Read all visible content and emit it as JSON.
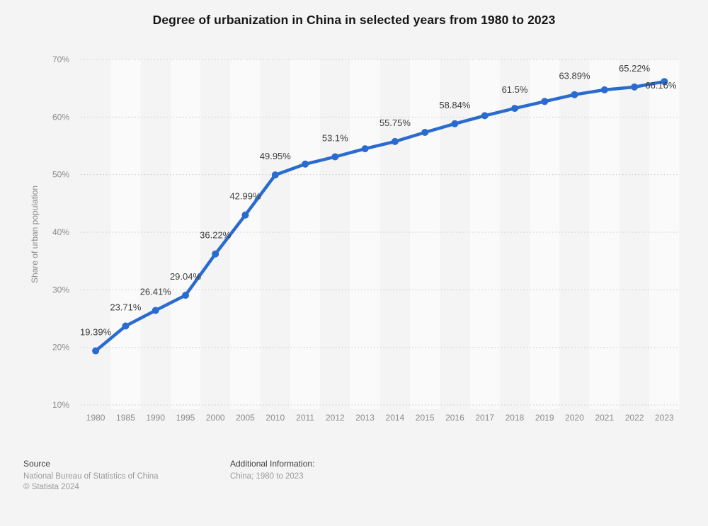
{
  "title": "Degree of urbanization in China in selected years from 1980 to 2023",
  "chart_data": {
    "type": "line",
    "title": "Degree of urbanization in China in selected years from 1980 to 2023",
    "xlabel": "",
    "ylabel": "Share of urban population",
    "categories": [
      "1980",
      "1985",
      "1990",
      "1995",
      "2000",
      "2005",
      "2010",
      "2011",
      "2012",
      "2013",
      "2014",
      "2015",
      "2016",
      "2017",
      "2018",
      "2019",
      "2020",
      "2021",
      "2022",
      "2023"
    ],
    "values": [
      19.39,
      23.71,
      26.41,
      29.04,
      36.22,
      42.99,
      49.95,
      51.83,
      53.1,
      54.49,
      55.75,
      57.33,
      58.84,
      60.24,
      61.5,
      62.71,
      63.89,
      64.72,
      65.22,
      66.16
    ],
    "point_labels": [
      "19.39%",
      "23.71%",
      "26.41%",
      "29.04%",
      "36.22%",
      "42.99%",
      "49.95%",
      null,
      "53.1%",
      null,
      "55.75%",
      null,
      "58.84%",
      null,
      "61.5%",
      null,
      "63.89%",
      null,
      "65.22%",
      "66.16%"
    ],
    "ylim": [
      10,
      70
    ],
    "yticks": [
      {
        "value": 70,
        "label": "70%"
      },
      {
        "value": 60,
        "label": "60%"
      },
      {
        "value": 50,
        "label": "50%"
      },
      {
        "value": 40,
        "label": "40%"
      },
      {
        "value": 30,
        "label": "30%"
      },
      {
        "value": 20,
        "label": "20%"
      },
      {
        "value": 10,
        "label": "10%"
      }
    ],
    "grid": "dotted-horizontal",
    "legend": "none",
    "colors": {
      "line": "#2a6bcf",
      "page_background": "#f4f4f4",
      "alt_band": "#fafafa",
      "gridline": "#c8c8c8",
      "tick_text": "#8b8b8b",
      "data_label_text": "#3d3d3d"
    }
  },
  "footer": {
    "source_label": "Source",
    "source_line1": "National Bureau of Statistics of China",
    "source_line2": "© Statista 2024",
    "additional_label": "Additional Information:",
    "additional_value": "China; 1980 to 2023"
  }
}
